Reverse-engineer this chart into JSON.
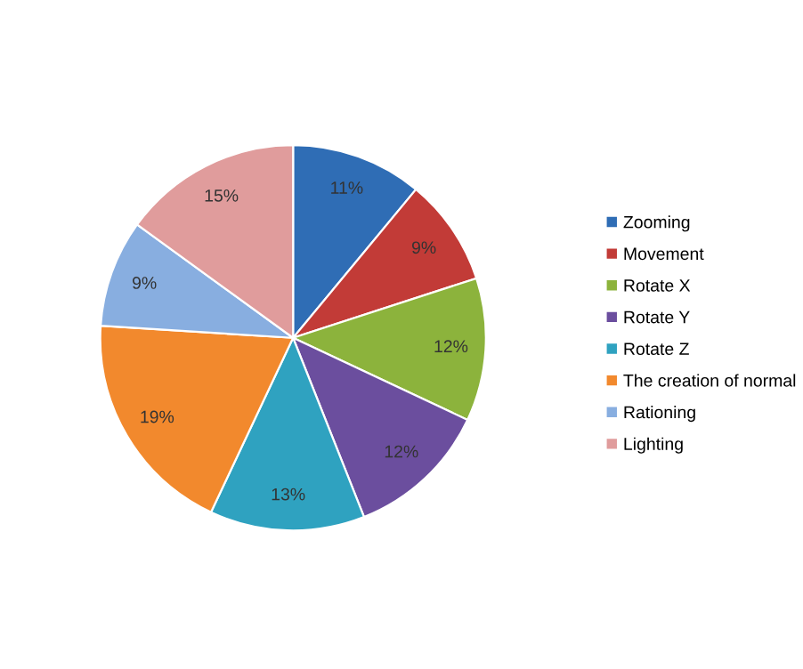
{
  "chart_data": {
    "type": "pie",
    "categories": [
      "Zooming",
      "Movement",
      "Rotate X",
      "Rotate Y",
      "Rotate Z",
      "The creation of normal",
      "Rationing",
      "Lighting"
    ],
    "values": [
      11,
      9,
      12,
      12,
      13,
      19,
      9,
      15
    ],
    "colors": [
      "#2f6db5",
      "#c23b37",
      "#8cb33c",
      "#6b4e9e",
      "#2fa2c0",
      "#f2892d",
      "#88aee0",
      "#e09c9c"
    ],
    "value_labels": [
      "11%",
      "9%",
      "12%",
      "12%",
      "13%",
      "19%",
      "9%",
      "15%"
    ],
    "legend": "right"
  }
}
